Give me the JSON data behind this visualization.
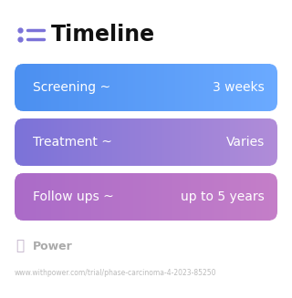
{
  "title": "Timeline",
  "background_color": "#ffffff",
  "rows": [
    {
      "left_text": "Screening ~",
      "right_text": "3 weeks",
      "color_left": "#4B8FF0",
      "color_right": "#6BAAFF"
    },
    {
      "left_text": "Treatment ~",
      "right_text": "Varies",
      "color_left": "#7B72D8",
      "color_right": "#B08CD8"
    },
    {
      "left_text": "Follow ups ~",
      "right_text": "up to 5 years",
      "color_left": "#AA6BC8",
      "color_right": "#C47EC8"
    }
  ],
  "watermark_text": "Power",
  "url_text": "www.withpower.com/trial/phase-carcinoma-4-2023-85250",
  "icon_color": "#7B72D8",
  "title_fontsize": 17,
  "row_fontsize": 10,
  "watermark_fontsize": 9,
  "url_fontsize": 5.5
}
